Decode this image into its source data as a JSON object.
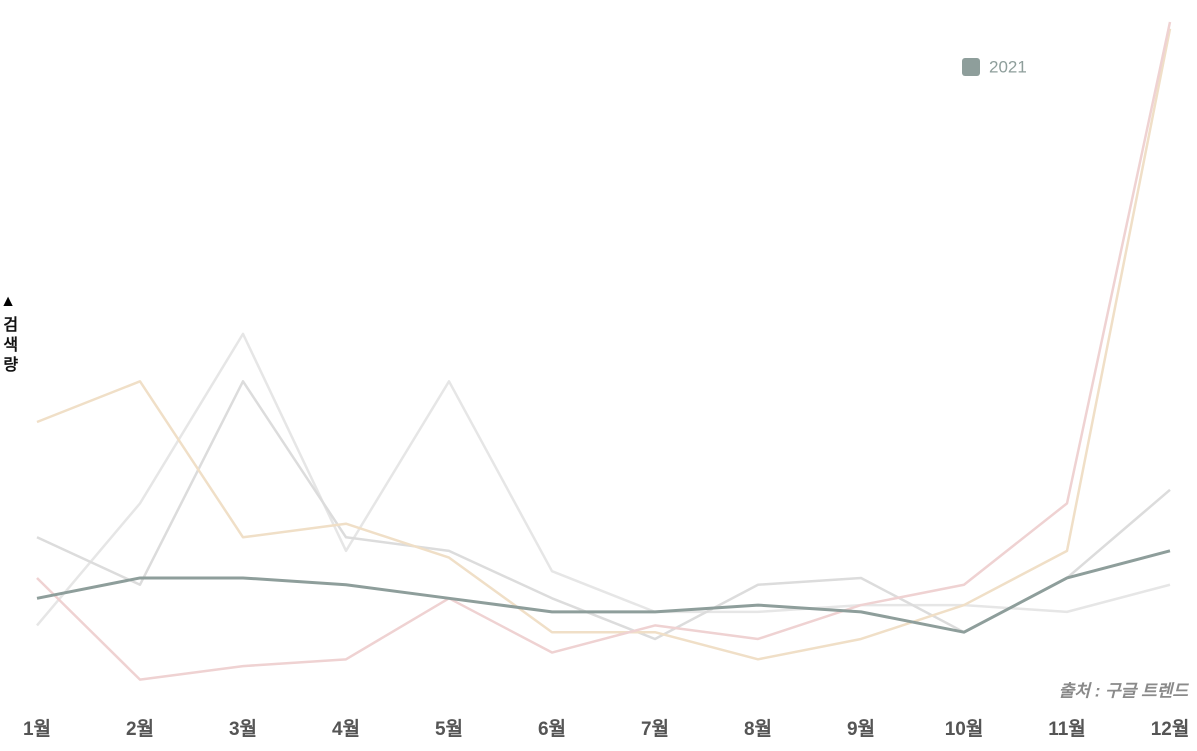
{
  "chart_data": {
    "type": "line",
    "y_label": "검색량",
    "source": "출처 : 구글 트렌드",
    "categories": [
      "1월",
      "2월",
      "3월",
      "4월",
      "5월",
      "6월",
      "7월",
      "8월",
      "9월",
      "10월",
      "11월",
      "12월"
    ],
    "ylim": [
      0,
      100
    ],
    "legend": "top-right",
    "series": [
      {
        "color": "#e6e6e6",
        "values": [
          11,
          29,
          54,
          22,
          47,
          19,
          13,
          13,
          14,
          14,
          13,
          17
        ]
      },
      {
        "color": "#dcdcdc",
        "values": [
          24,
          17,
          47,
          24,
          22,
          15,
          9,
          17,
          18,
          10,
          18,
          31
        ]
      },
      {
        "color": "#f0dfc7",
        "values": [
          41,
          47,
          24,
          26,
          21,
          10,
          10,
          6,
          9,
          14,
          22,
          99
        ]
      },
      {
        "color": "#efd2d2",
        "values": [
          18,
          3,
          5,
          6,
          15,
          7,
          11,
          9,
          14,
          17,
          29,
          100
        ]
      },
      {
        "name": "2021",
        "color": "#8e9e9b",
        "values": [
          15,
          18,
          18,
          17,
          15,
          13,
          13,
          14,
          13,
          10,
          18,
          22
        ]
      }
    ]
  }
}
